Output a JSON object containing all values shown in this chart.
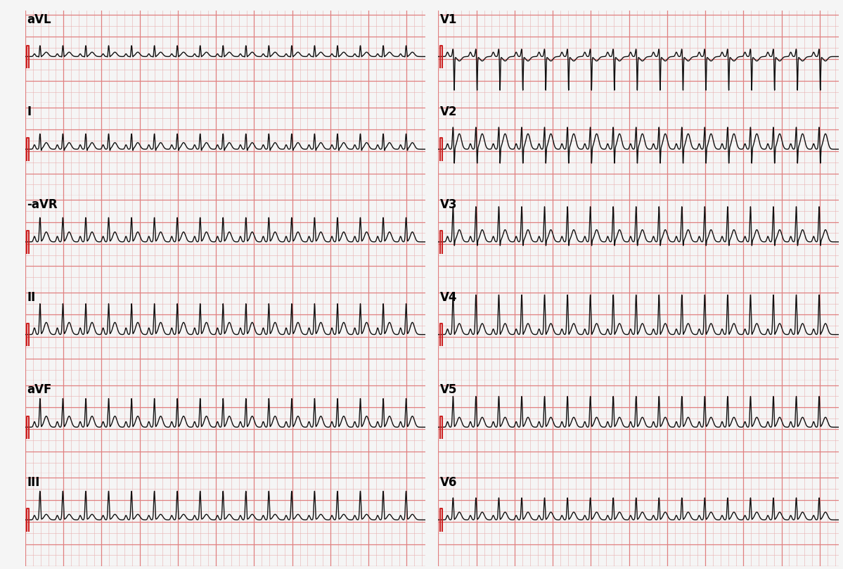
{
  "bg_color": "#f5f5f5",
  "grid_minor_color": "#e8b0b0",
  "grid_major_color": "#e08080",
  "ecg_color": "#111111",
  "cal_color": "#cc2222",
  "leads_left": [
    "aVL",
    "I",
    "-aVR",
    "II",
    "aVF",
    "III"
  ],
  "leads_right": [
    "V1",
    "V2",
    "V3",
    "V4",
    "V5",
    "V6"
  ],
  "fig_width": 11.99,
  "fig_height": 8.09,
  "dpi": 100,
  "label_fontsize": 12,
  "label_fontweight": "bold",
  "lead_params": {
    "aVL": {
      "p": 0.025,
      "q": -0.03,
      "r": 0.1,
      "s": -0.02,
      "t": 0.04,
      "t_inv": false
    },
    "I": {
      "p": 0.04,
      "q": -0.02,
      "r": 0.14,
      "s": -0.04,
      "t": 0.06,
      "t_inv": false
    },
    "-aVR": {
      "p": 0.05,
      "q": -0.01,
      "r": 0.22,
      "s": -0.03,
      "t": 0.09,
      "t_inv": false
    },
    "II": {
      "p": 0.06,
      "q": -0.02,
      "r": 0.28,
      "s": -0.04,
      "t": 0.11,
      "t_inv": false
    },
    "aVF": {
      "p": 0.05,
      "q": -0.02,
      "r": 0.26,
      "s": -0.04,
      "t": 0.1,
      "t_inv": false
    },
    "III": {
      "p": 0.04,
      "q": -0.01,
      "r": 0.26,
      "s": -0.03,
      "t": 0.05,
      "t_inv": false
    },
    "V1": {
      "p": 0.04,
      "q": 0.0,
      "r": 0.07,
      "s": -0.32,
      "t": -0.04,
      "t_inv": true
    },
    "V2": {
      "p": 0.05,
      "q": -0.01,
      "r": 0.2,
      "s": -0.18,
      "t": 0.14,
      "t_inv": false
    },
    "V3": {
      "p": 0.05,
      "q": -0.01,
      "r": 0.32,
      "s": -0.1,
      "t": 0.11,
      "t_inv": false
    },
    "V4": {
      "p": 0.05,
      "q": -0.02,
      "r": 0.36,
      "s": -0.06,
      "t": 0.1,
      "t_inv": false
    },
    "V5": {
      "p": 0.05,
      "q": -0.02,
      "r": 0.28,
      "s": -0.04,
      "t": 0.09,
      "t_inv": false
    },
    "V6": {
      "p": 0.04,
      "q": -0.02,
      "r": 0.2,
      "s": -0.03,
      "t": 0.07,
      "t_inv": false
    }
  }
}
